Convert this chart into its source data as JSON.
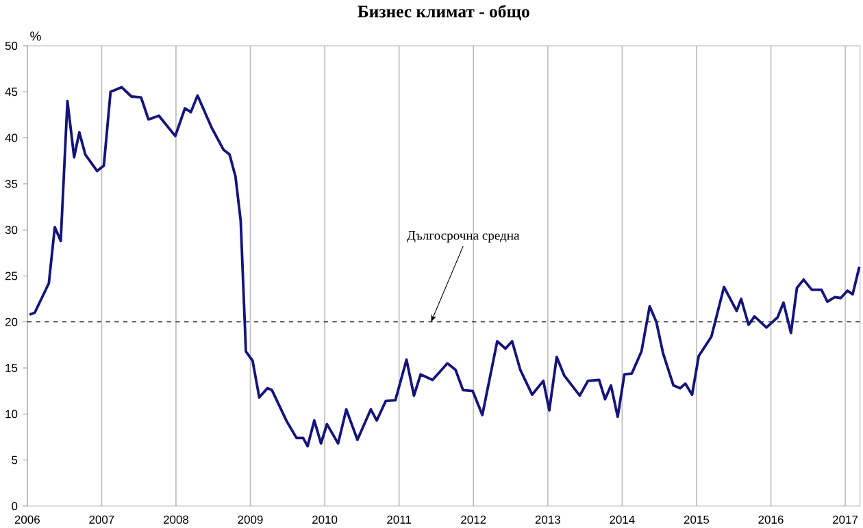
{
  "chart_data": {
    "type": "line",
    "title": "Бизнес климат - общо",
    "ylabel": "%",
    "x": [
      2006.03,
      2006.1,
      2006.29,
      2006.37,
      2006.45,
      2006.54,
      2006.63,
      2006.7,
      2006.78,
      2006.94,
      2007.03,
      2007.12,
      2007.27,
      2007.4,
      2007.53,
      2007.63,
      2007.77,
      2007.99,
      2008.12,
      2008.2,
      2008.29,
      2008.48,
      2008.64,
      2008.72,
      2008.8,
      2008.87,
      2008.94,
      2009.03,
      2009.12,
      2009.23,
      2009.29,
      2009.49,
      2009.62,
      2009.71,
      2009.77,
      2009.86,
      2009.95,
      2010.03,
      2010.18,
      2010.29,
      2010.44,
      2010.62,
      2010.7,
      2010.82,
      2010.95,
      2011.1,
      2011.2,
      2011.29,
      2011.45,
      2011.65,
      2011.76,
      2011.86,
      2011.99,
      2012.12,
      2012.32,
      2012.43,
      2012.52,
      2012.63,
      2012.79,
      2012.94,
      2013.02,
      2013.12,
      2013.22,
      2013.43,
      2013.54,
      2013.69,
      2013.77,
      2013.85,
      2013.94,
      2014.03,
      2014.13,
      2014.26,
      2014.37,
      2014.46,
      2014.55,
      2014.69,
      2014.78,
      2014.85,
      2014.94,
      2015.03,
      2015.2,
      2015.37,
      2015.54,
      2015.6,
      2015.7,
      2015.78,
      2015.94,
      2016.09,
      2016.17,
      2016.27,
      2016.35,
      2016.44,
      2016.55,
      2016.68,
      2016.76,
      2016.86,
      2016.94,
      2017.03,
      2017.1,
      2017.19
    ],
    "series": [
      {
        "color": "#14147a",
        "values": [
          20.8,
          21,
          24.2,
          30.3,
          28.8,
          44.0,
          37.9,
          40.6,
          38.2,
          36.4,
          37.0,
          45.0,
          45.5,
          44.5,
          44.4,
          42.0,
          42.4,
          40.2,
          43.2,
          42.8,
          44.6,
          41.1,
          38.7,
          38.2,
          35.8,
          31.0,
          16.8,
          15.8,
          11.8,
          12.8,
          12.6,
          9.2,
          7.4,
          7.4,
          6.5,
          9.3,
          6.8,
          8.9,
          6.8,
          10.5,
          7.2,
          10.5,
          9.3,
          11.4,
          11.5,
          15.9,
          12.0,
          14.3,
          13.7,
          15.5,
          14.8,
          12.6,
          12.5,
          9.9,
          17.9,
          17.1,
          17.9,
          14.8,
          12.1,
          13.6,
          10.4,
          16.2,
          14.2,
          12.0,
          13.6,
          13.7,
          11.6,
          13.1,
          9.7,
          14.3,
          14.4,
          16.8,
          21.7,
          20.0,
          16.6,
          13.1,
          12.8,
          13.3,
          12.1,
          16.3,
          18.4,
          23.8,
          21.2,
          22.5,
          19.7,
          20.6,
          19.4,
          20.5,
          22.1,
          18.8,
          23.7,
          24.6,
          23.5,
          23.5,
          22.2,
          22.7,
          22.6,
          23.4,
          23.0,
          26.0
        ]
      }
    ],
    "xlim": [
      2006,
      2017.2
    ],
    "xticks": [
      2006,
      2007,
      2008,
      2009,
      2010,
      2011,
      2012,
      2013,
      2014,
      2015,
      2016,
      2017
    ],
    "ylim": [
      0,
      50
    ],
    "yticks": [
      0,
      5,
      10,
      15,
      20,
      25,
      30,
      35,
      40,
      45,
      50
    ],
    "grid": "x",
    "marker": "none",
    "line_style": "solid",
    "ref_lines": [
      {
        "axis": "y",
        "value": 20,
        "color": "#000000",
        "line_style": "dashed"
      }
    ],
    "annotations": [
      {
        "text": "Дългосрочна средна",
        "x": 2011.43,
        "y": 20
      }
    ]
  }
}
